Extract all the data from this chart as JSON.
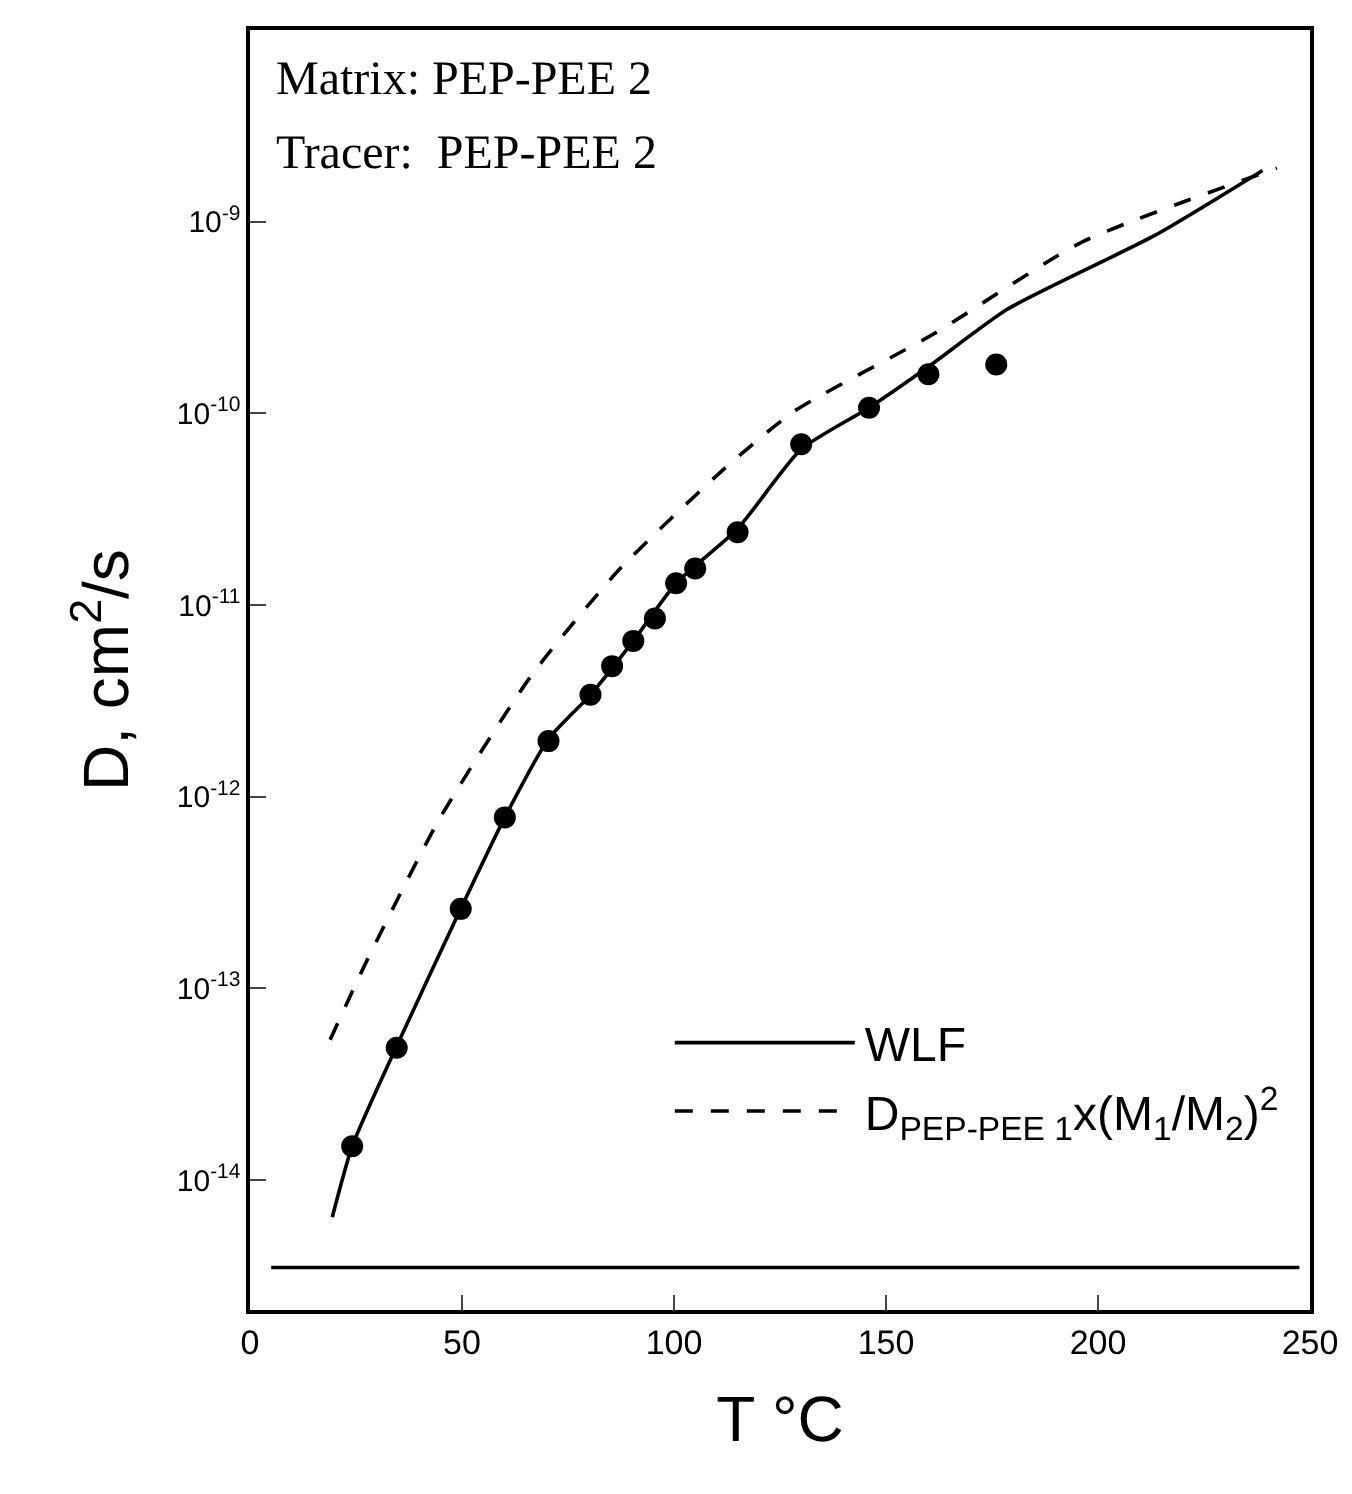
{
  "chart_data": {
    "type": "scatter",
    "xlabel": "T °C",
    "ylabel": "D, cm$^{2}$/s",
    "log": "y",
    "xlim": [
      0,
      250
    ],
    "xticks": [
      0,
      50,
      100,
      150,
      200,
      250
    ],
    "ylim": [
      2.1e-15,
      1e-08
    ],
    "yticks": [
      {
        "value": 1e-14,
        "label": "10$^{-14}$"
      },
      {
        "value": 1e-13,
        "label": "10$^{-13}$"
      },
      {
        "value": 1e-12,
        "label": "10$^{-12}$"
      },
      {
        "value": 1e-11,
        "label": "10$^{-11}$"
      },
      {
        "value": 1e-10,
        "label": "10$^{-10}$"
      },
      {
        "value": 1e-09,
        "label": "10$^{-9}$"
      }
    ],
    "grid": false,
    "legend": "bottom right",
    "marker": "circle",
    "annotations": [
      "Matrix: PEP-PEE 2",
      "Tracer:  PEP-PEE 2"
    ],
    "ref_lines": [
      {
        "axis": "y",
        "value": 3.5e-15,
        "color": "#000000"
      }
    ],
    "series": [
      {
        "color": "#000000",
        "x": [
          24.1,
          34.6,
          49.7,
          60.1,
          70.4,
          80.3,
          85.4,
          90.4,
          95.5,
          100.5,
          105,
          115,
          130,
          146,
          160,
          176
        ],
        "values": [
          1.5e-14,
          4.9e-14,
          2.6e-13,
          7.8e-13,
          1.95e-12,
          3.4e-12,
          4.8e-12,
          6.5e-12,
          8.5e-12,
          1.3e-11,
          1.55e-11,
          2.4e-11,
          6.9e-11,
          1.07e-10,
          1.6e-10,
          1.8e-10
        ]
      },
      {
        "type": "line",
        "name": "WLF",
        "color": "#000000",
        "line_style": "solid",
        "marker": "none",
        "x": [
          19.4,
          24.1,
          34.6,
          49.7,
          60.1,
          70.4,
          80.3,
          90.4,
          100.5,
          115,
          130,
          146,
          160,
          178.7,
          213.5,
          238.8
        ],
        "values": [
          6.4e-15,
          1.5e-14,
          5e-14,
          2.6e-13,
          7.8e-13,
          2e-12,
          3.4e-12,
          6.5e-12,
          1.3e-11,
          2.5e-11,
          6.5e-11,
          1.07e-10,
          1.75e-10,
          3.5e-10,
          8.5e-10,
          1.85e-09
        ]
      },
      {
        "type": "line",
        "name": "D$_{PEP-PEE 1}$x(M$_{1}$/M$_{2}$)$^{2}$",
        "color": "#000000",
        "line_style": "dashed",
        "marker": "none",
        "x": [
          18.9,
          27.6,
          44.6,
          66.4,
          87.3,
          111.7,
          128.2,
          161.3,
          196.1,
          242.2
        ],
        "values": [
          5.4e-14,
          1.4e-13,
          7.6e-13,
          4.3e-12,
          1.55e-11,
          5.1e-11,
          1.02e-10,
          2.6e-10,
          7.8e-10,
          1.9e-09
        ]
      }
    ]
  }
}
